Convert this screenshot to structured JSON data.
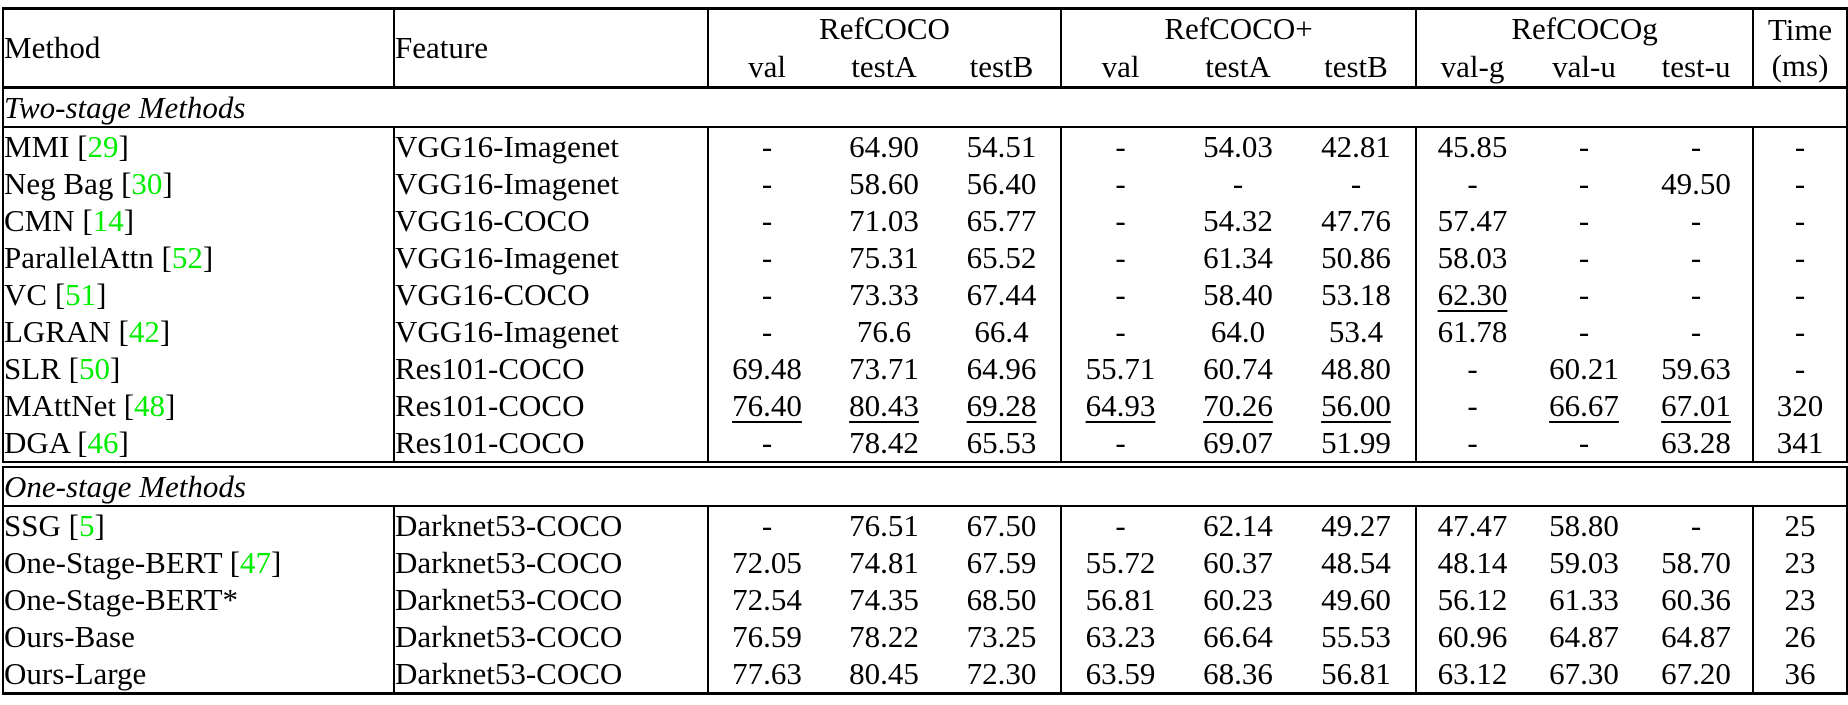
{
  "table": {
    "colors": {
      "citation_green": "#00EE00"
    },
    "header": {
      "method": "Method",
      "feature": "Feature",
      "groups": [
        {
          "label": "RefCOCO",
          "cols": [
            "val",
            "testA",
            "testB"
          ]
        },
        {
          "label": "RefCOCO+",
          "cols": [
            "val",
            "testA",
            "testB"
          ]
        },
        {
          "label": "RefCOCOg",
          "cols": [
            "val-g",
            "val-u",
            "test-u"
          ]
        }
      ],
      "time_label": "Time",
      "time_unit": "(ms)"
    },
    "sections": [
      {
        "label": "Two-stage Methods",
        "rows": [
          {
            "method": "MMI",
            "cite": "29",
            "feature": "VGG16-Imagenet",
            "cells": [
              {
                "t": "-"
              },
              {
                "t": "64.90"
              },
              {
                "t": "54.51"
              },
              {
                "t": "-"
              },
              {
                "t": "54.03"
              },
              {
                "t": "42.81"
              },
              {
                "t": "45.85"
              },
              {
                "t": "-"
              },
              {
                "t": "-"
              },
              {
                "t": "-"
              }
            ]
          },
          {
            "method": "Neg Bag",
            "cite": "30",
            "feature": "VGG16-Imagenet",
            "cells": [
              {
                "t": "-"
              },
              {
                "t": "58.60"
              },
              {
                "t": "56.40"
              },
              {
                "t": "-"
              },
              {
                "t": "-"
              },
              {
                "t": "-"
              },
              {
                "t": "-"
              },
              {
                "t": "-"
              },
              {
                "t": "49.50"
              },
              {
                "t": "-"
              }
            ]
          },
          {
            "method": "CMN",
            "cite": "14",
            "feature": "VGG16-COCO",
            "cells": [
              {
                "t": "-"
              },
              {
                "t": "71.03"
              },
              {
                "t": "65.77"
              },
              {
                "t": "-"
              },
              {
                "t": "54.32"
              },
              {
                "t": "47.76"
              },
              {
                "t": "57.47"
              },
              {
                "t": "-"
              },
              {
                "t": "-"
              },
              {
                "t": "-"
              }
            ]
          },
          {
            "method": "ParallelAttn",
            "cite": "52",
            "feature": "VGG16-Imagenet",
            "cells": [
              {
                "t": "-"
              },
              {
                "t": "75.31"
              },
              {
                "t": "65.52"
              },
              {
                "t": "-"
              },
              {
                "t": "61.34"
              },
              {
                "t": "50.86"
              },
              {
                "t": "58.03"
              },
              {
                "t": "-"
              },
              {
                "t": "-"
              },
              {
                "t": "-"
              }
            ]
          },
          {
            "method": "VC",
            "cite": "51",
            "feature": "VGG16-COCO",
            "cells": [
              {
                "t": "-"
              },
              {
                "t": "73.33"
              },
              {
                "t": "67.44"
              },
              {
                "t": "-"
              },
              {
                "t": "58.40"
              },
              {
                "t": "53.18"
              },
              {
                "t": "62.30",
                "s": "u"
              },
              {
                "t": "-"
              },
              {
                "t": "-"
              },
              {
                "t": "-"
              }
            ]
          },
          {
            "method": "LGRAN",
            "cite": "42",
            "feature": "VGG16-Imagenet",
            "cells": [
              {
                "t": "-"
              },
              {
                "t": "76.6"
              },
              {
                "t": "66.4"
              },
              {
                "t": "-"
              },
              {
                "t": "64.0"
              },
              {
                "t": "53.4"
              },
              {
                "t": "61.78"
              },
              {
                "t": "-"
              },
              {
                "t": "-"
              },
              {
                "t": "-"
              }
            ]
          },
          {
            "method": "SLR",
            "cite": "50",
            "feature": "Res101-COCO",
            "cells": [
              {
                "t": "69.48"
              },
              {
                "t": "73.71"
              },
              {
                "t": "64.96"
              },
              {
                "t": "55.71"
              },
              {
                "t": "60.74"
              },
              {
                "t": "48.80"
              },
              {
                "t": "-"
              },
              {
                "t": "60.21"
              },
              {
                "t": "59.63"
              },
              {
                "t": "-"
              }
            ]
          },
          {
            "method": "MAttNet",
            "cite": "48",
            "feature": "Res101-COCO",
            "cells": [
              {
                "t": "76.40",
                "s": "u"
              },
              {
                "t": "80.43",
                "s": "u"
              },
              {
                "t": "69.28",
                "s": "u"
              },
              {
                "t": "64.93",
                "s": "u"
              },
              {
                "t": "70.26",
                "s": "u"
              },
              {
                "t": "56.00",
                "s": "u"
              },
              {
                "t": "-"
              },
              {
                "t": "66.67",
                "s": "u"
              },
              {
                "t": "67.01",
                "s": "u"
              },
              {
                "t": "320"
              }
            ]
          },
          {
            "method": "DGA",
            "cite": "46",
            "feature": "Res101-COCO",
            "cells": [
              {
                "t": "-"
              },
              {
                "t": "78.42"
              },
              {
                "t": "65.53"
              },
              {
                "t": "-"
              },
              {
                "t": "69.07"
              },
              {
                "t": "51.99"
              },
              {
                "t": "-"
              },
              {
                "t": "-"
              },
              {
                "t": "63.28"
              },
              {
                "t": "341"
              }
            ]
          }
        ]
      },
      {
        "label": "One-stage Methods",
        "rows": [
          {
            "method": "SSG",
            "cite": "5",
            "feature": "Darknet53-COCO",
            "cells": [
              {
                "t": "-"
              },
              {
                "t": "76.51"
              },
              {
                "t": "67.50"
              },
              {
                "t": "-"
              },
              {
                "t": "62.14"
              },
              {
                "t": "49.27"
              },
              {
                "t": "47.47"
              },
              {
                "t": "58.80"
              },
              {
                "t": "-"
              },
              {
                "t": "25"
              }
            ]
          },
          {
            "method": "One-Stage-BERT",
            "cite": "47",
            "feature": "Darknet53-COCO",
            "cells": [
              {
                "t": "72.05"
              },
              {
                "t": "74.81"
              },
              {
                "t": "67.59"
              },
              {
                "t": "55.72"
              },
              {
                "t": "60.37"
              },
              {
                "t": "48.54"
              },
              {
                "t": "48.14"
              },
              {
                "t": "59.03"
              },
              {
                "t": "58.70"
              },
              {
                "t": "23"
              }
            ]
          },
          {
            "method": "One-Stage-BERT*",
            "cite": null,
            "feature": "Darknet53-COCO",
            "cells": [
              {
                "t": "72.54"
              },
              {
                "t": "74.35"
              },
              {
                "t": "68.50"
              },
              {
                "t": "56.81"
              },
              {
                "t": "60.23"
              },
              {
                "t": "49.60"
              },
              {
                "t": "56.12"
              },
              {
                "t": "61.33"
              },
              {
                "t": "60.36"
              },
              {
                "t": "23"
              }
            ]
          },
          {
            "method": "Ours-Base",
            "cite": null,
            "feature": "Darknet53-COCO",
            "cells": [
              {
                "t": "76.59"
              },
              {
                "t": "78.22"
              },
              {
                "t": "73.25",
                "s": "b"
              },
              {
                "t": "63.23"
              },
              {
                "t": "66.64"
              },
              {
                "t": "55.53"
              },
              {
                "t": "60.96"
              },
              {
                "t": "64.87"
              },
              {
                "t": "64.87"
              },
              {
                "t": "26"
              }
            ]
          },
          {
            "method": "Ours-Large",
            "cite": null,
            "feature": "Darknet53-COCO",
            "cells": [
              {
                "t": "77.63",
                "s": "b"
              },
              {
                "t": "80.45",
                "s": "b"
              },
              {
                "t": "72.30"
              },
              {
                "t": "63.59",
                "s": "b"
              },
              {
                "t": "68.36",
                "s": "b"
              },
              {
                "t": "56.81",
                "s": "b"
              },
              {
                "t": "63.12",
                "s": "b"
              },
              {
                "t": "67.30",
                "s": "b"
              },
              {
                "t": "67.20",
                "s": "b"
              },
              {
                "t": "36"
              }
            ]
          }
        ]
      }
    ]
  }
}
